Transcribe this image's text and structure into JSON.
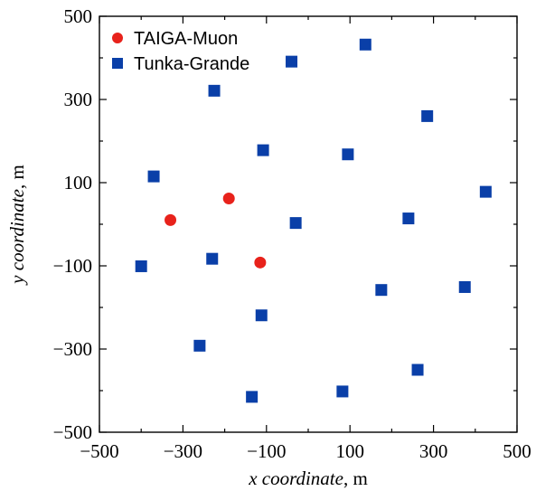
{
  "chart_data": {
    "type": "scatter",
    "xlabel_italic": "x coordinate",
    "xlabel_unit": ", m",
    "ylabel_italic": "y coordinate",
    "ylabel_unit": ", m",
    "xlim": [
      -500,
      500
    ],
    "ylim": [
      -500,
      500
    ],
    "xticks": [
      -500,
      -300,
      -100,
      100,
      300,
      500
    ],
    "yticks": [
      -500,
      -300,
      -100,
      100,
      300,
      500
    ],
    "xtick_labels": [
      "−500",
      "−300",
      "−100",
      "100",
      "300",
      "500"
    ],
    "ytick_labels": [
      "−500",
      "−300",
      "−100",
      "100",
      "300",
      "500"
    ],
    "legend_position": "top-left",
    "grid": false,
    "series": [
      {
        "name": "TAIGA-Muon",
        "marker": "circle",
        "color": "#e8221b",
        "points": [
          {
            "x": -190,
            "y": 62
          },
          {
            "x": -330,
            "y": 10
          },
          {
            "x": -115,
            "y": -92
          }
        ]
      },
      {
        "name": "Tunka-Grande",
        "marker": "square",
        "color": "#0a3fa8",
        "points": [
          {
            "x": 137,
            "y": 432
          },
          {
            "x": -40,
            "y": 391
          },
          {
            "x": -225,
            "y": 321
          },
          {
            "x": 285,
            "y": 260
          },
          {
            "x": -108,
            "y": 178
          },
          {
            "x": 95,
            "y": 168
          },
          {
            "x": -370,
            "y": 115
          },
          {
            "x": 425,
            "y": 78
          },
          {
            "x": 240,
            "y": 14
          },
          {
            "x": -30,
            "y": 3
          },
          {
            "x": -230,
            "y": -83
          },
          {
            "x": -400,
            "y": -101
          },
          {
            "x": 175,
            "y": -158
          },
          {
            "x": 375,
            "y": -151
          },
          {
            "x": -112,
            "y": -219
          },
          {
            "x": -260,
            "y": -292
          },
          {
            "x": 262,
            "y": -350
          },
          {
            "x": 82,
            "y": -402
          },
          {
            "x": -135,
            "y": -415
          }
        ]
      }
    ]
  }
}
